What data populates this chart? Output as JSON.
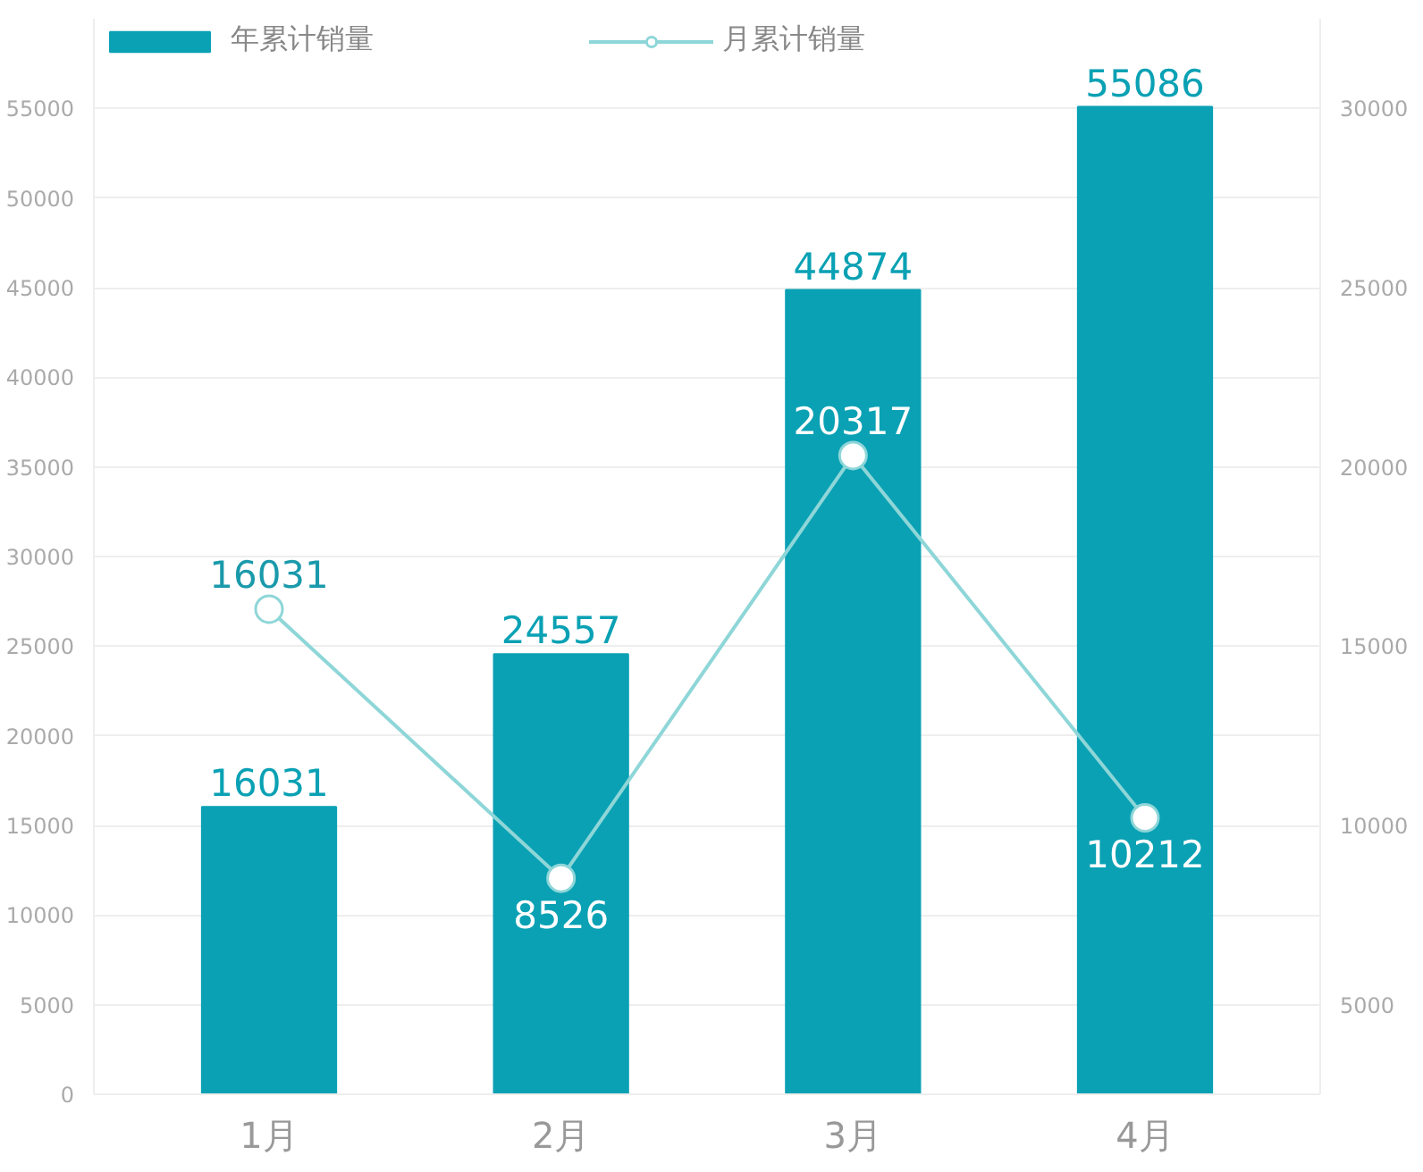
{
  "chart_data": {
    "type": "bar",
    "categories": [
      "1月",
      "2月",
      "3月",
      "4月"
    ],
    "series": [
      {
        "name": "年累计销量",
        "color": "#0aa1b4",
        "values": [
          16031,
          24557,
          44874,
          55086
        ]
      },
      {
        "name": "月累计销量",
        "type": "line",
        "axis": "y2",
        "color": "#8ed6d8",
        "marker": "circle",
        "values": [
          16031,
          8526,
          20317,
          10212
        ]
      }
    ],
    "ylim": [
      0,
      60000
    ],
    "yticks": [
      0,
      5000,
      10000,
      15000,
      20000,
      25000,
      30000,
      35000,
      40000,
      45000,
      50000,
      55000
    ],
    "y2lim": [
      2500,
      32500
    ],
    "y2ticks": [
      5000,
      10000,
      15000,
      20000,
      25000,
      30000
    ],
    "grid": "y",
    "legend": "top left",
    "data_labels": true
  }
}
